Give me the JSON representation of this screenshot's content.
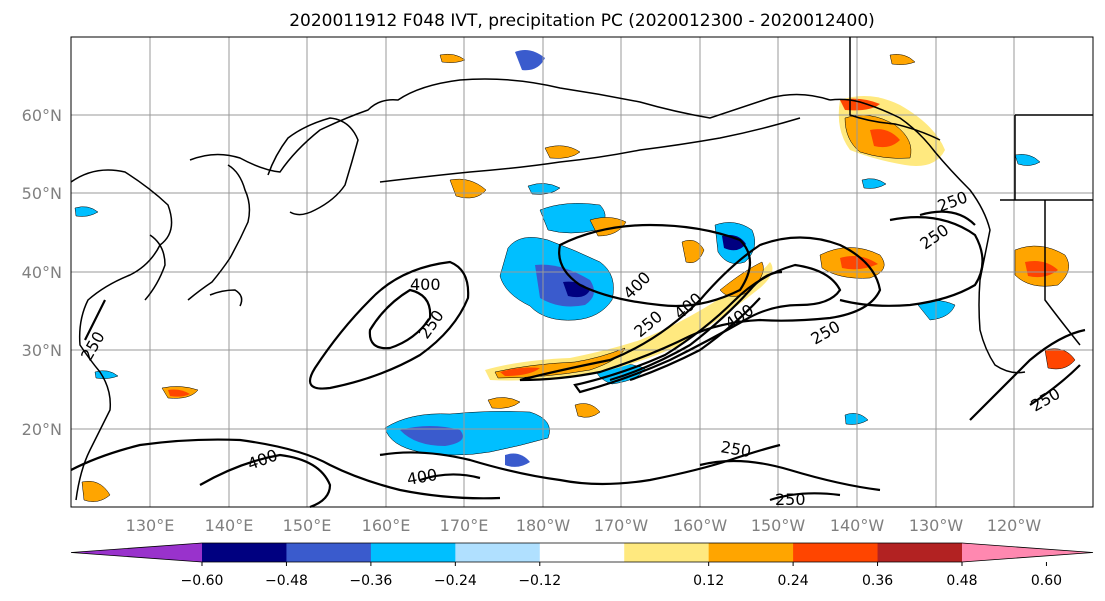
{
  "title": "2020011912 F048 IVT, precipitation PC (2020012300 - 2020012400)",
  "lat_labels": [
    "60°N",
    "50°N",
    "40°N",
    "30°N",
    "20°N"
  ],
  "lon_labels": [
    "130°E",
    "140°E",
    "150°E",
    "160°E",
    "170°E",
    "180°W",
    "170°W",
    "160°W",
    "150°W",
    "140°W",
    "130°W",
    "120°W"
  ],
  "colorbar": {
    "ticks": [
      "−0.60",
      "−0.48",
      "−0.36",
      "−0.24",
      "−0.12",
      "0.12",
      "0.24",
      "0.36",
      "0.48",
      "0.60"
    ],
    "colors": [
      "#9932CC",
      "#000080",
      "#3A5BCD",
      "#00BFFF",
      "#B0E0FF",
      "#FFFFFF",
      "#FFE97F",
      "#FFA500",
      "#FF4500",
      "#B22222",
      "#FF88B0"
    ]
  },
  "contour_labels": [
    "400",
    "250",
    "400",
    "250",
    "250",
    "400",
    "400",
    "250",
    "250",
    "250",
    "400",
    "250",
    "250",
    "250",
    "250",
    "400"
  ],
  "precip_colors": {
    "dark_blue": "#000080",
    "blue": "#3A5BCD",
    "light_blue": "#00BFFF",
    "pale_blue": "#B0E0FF",
    "yellow": "#FFE97F",
    "orange": "#FFA500",
    "red": "#FF4500"
  }
}
